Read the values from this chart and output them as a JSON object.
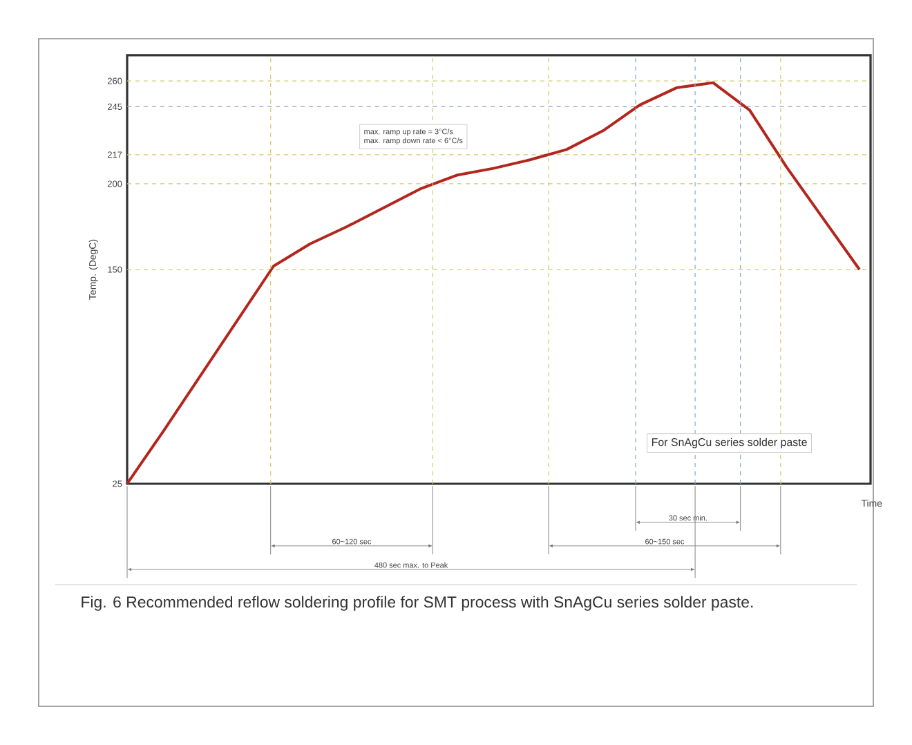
{
  "chart_data": {
    "type": "line",
    "ylabel": "Temp. (DegC)",
    "xlabel": "Time",
    "categories": [
      null,
      null,
      null,
      null,
      null,
      null,
      null,
      null,
      null,
      null,
      null,
      null,
      null,
      null,
      null,
      null,
      null,
      null,
      null,
      null,
      null
    ],
    "series": [
      {
        "color": "#b3261e",
        "values": [
          25,
          56,
          88,
          120,
          152,
          165,
          175,
          186,
          197,
          205,
          209,
          214,
          220,
          231,
          246,
          256,
          259,
          243,
          210,
          180,
          150
        ]
      }
    ],
    "ylim": [
      25,
      275
    ],
    "yticks": [
      25,
      150,
      200,
      217,
      245,
      260
    ],
    "tick_labels": "y",
    "marker": "none",
    "line_style": "solid",
    "ref_lines": [
      {
        "axis": "y",
        "value": 150,
        "color": "#d4c96a",
        "line_style": "dashed"
      },
      {
        "axis": "y",
        "value": 200,
        "color": "#d4c96a",
        "line_style": "dashed"
      },
      {
        "axis": "y",
        "value": 217,
        "color": "#d4c96a",
        "line_style": "dashed"
      },
      {
        "axis": "y",
        "value": 245,
        "color": "#8aa6c8",
        "line_style": "dashed"
      },
      {
        "axis": "y",
        "value": 260,
        "color": "#d4c96a",
        "line_style": "dashed"
      }
    ],
    "annotations": [
      "max. ramp up rate = 3°C/s",
      "max. ramp down rate < 6°C/s",
      "For SnAgCu series solder paste",
      "30 sec min.",
      "60~120 sec",
      "60~150 sec",
      "480 sec max. to Peak",
      "Fig. 6 Recommended reflow soldering profile for SMT process with SnAgCu series solder paste."
    ]
  }
}
